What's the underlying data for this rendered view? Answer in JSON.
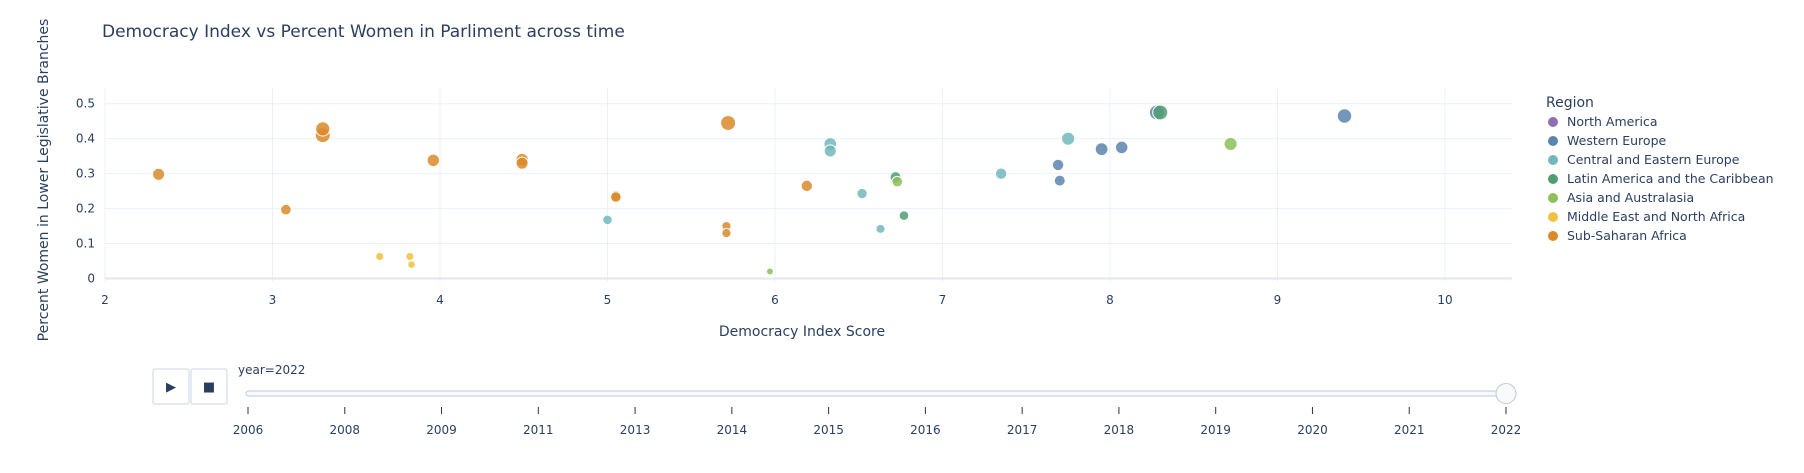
{
  "chart_data": {
    "type": "scatter",
    "title": "Democracy Index vs Percent Women in Parliment across time",
    "xlabel": "Democracy Index Score",
    "ylabel": "Percent Women in Lower Legislative Branches",
    "xlim": [
      2,
      10.4
    ],
    "ylim": [
      -0.01,
      0.545
    ],
    "xticks": [
      2,
      3,
      4,
      5,
      6,
      7,
      8,
      9,
      10
    ],
    "yticks": [
      0,
      0.1,
      0.2,
      0.3,
      0.4,
      0.5
    ],
    "grid": true,
    "legend": {
      "title": "Region",
      "placement": "right"
    },
    "series": [
      {
        "name": "North America",
        "color": "#8e6fb0",
        "points": []
      },
      {
        "name": "Western Europe",
        "color": "#5b84ad",
        "points": [
          [
            9.4,
            0.465,
            0.47
          ],
          [
            8.28,
            0.475,
            0.5
          ],
          [
            8.07,
            0.375,
            0.36
          ],
          [
            7.95,
            0.37,
            0.38
          ],
          [
            7.69,
            0.325,
            0.3
          ],
          [
            7.7,
            0.28,
            0.28
          ]
        ]
      },
      {
        "name": "Central and Eastern Europe",
        "color": "#72b7bc",
        "points": [
          [
            7.75,
            0.4,
            0.4
          ],
          [
            7.35,
            0.3,
            0.3
          ],
          [
            6.33,
            0.385,
            0.37
          ],
          [
            6.33,
            0.365,
            0.34
          ],
          [
            6.52,
            0.243,
            0.24
          ],
          [
            6.63,
            0.142,
            0.17
          ],
          [
            5.0,
            0.168,
            0.2
          ]
        ]
      },
      {
        "name": "Latin America and the Caribbean",
        "color": "#4f9f72",
        "points": [
          [
            8.3,
            0.475,
            0.5
          ],
          [
            6.72,
            0.29,
            0.28
          ],
          [
            6.77,
            0.18,
            0.2
          ]
        ]
      },
      {
        "name": "Asia and Australasia",
        "color": "#8cc05a",
        "points": [
          [
            8.72,
            0.385,
            0.4
          ],
          [
            6.73,
            0.277,
            0.26
          ],
          [
            5.97,
            0.02,
            0.06
          ]
        ]
      },
      {
        "name": "Middle East and North Africa",
        "color": "#f0c040",
        "points": [
          [
            3.64,
            0.063,
            0.12
          ],
          [
            3.82,
            0.063,
            0.12
          ],
          [
            3.83,
            0.04,
            0.09
          ]
        ]
      },
      {
        "name": "Sub-Saharan Africa",
        "color": "#d98a2a",
        "points": [
          [
            2.32,
            0.298,
            0.34
          ],
          [
            3.08,
            0.197,
            0.26
          ],
          [
            3.3,
            0.41,
            0.5
          ],
          [
            3.3,
            0.428,
            0.46
          ],
          [
            3.96,
            0.338,
            0.36
          ],
          [
            4.49,
            0.34,
            0.36
          ],
          [
            4.49,
            0.33,
            0.34
          ],
          [
            5.05,
            0.237,
            0.26
          ],
          [
            5.05,
            0.233,
            0.26
          ],
          [
            5.72,
            0.445,
            0.5
          ],
          [
            5.71,
            0.15,
            0.18
          ],
          [
            5.71,
            0.13,
            0.18
          ],
          [
            6.19,
            0.265,
            0.3
          ]
        ]
      }
    ]
  },
  "slider": {
    "current_label": "year=2022",
    "years": [
      "2006",
      "2008",
      "2009",
      "2011",
      "2013",
      "2014",
      "2015",
      "2016",
      "2017",
      "2018",
      "2019",
      "2020",
      "2021",
      "2022"
    ],
    "active_index": 13
  },
  "controls": {
    "play_glyph": "▶",
    "stop_glyph": "■"
  }
}
